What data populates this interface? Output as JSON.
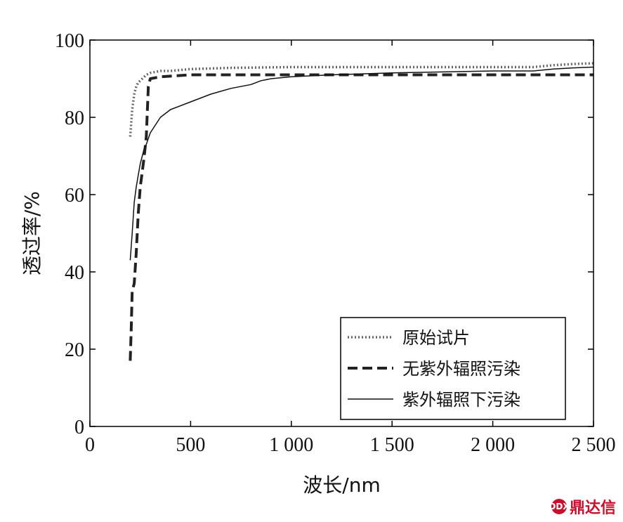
{
  "chart_data": {
    "type": "line",
    "title": "",
    "xlabel": "波长/nm",
    "ylabel": "透过率/%",
    "xlim": [
      0,
      2500
    ],
    "ylim": [
      0,
      100
    ],
    "x_ticks": [
      0,
      500,
      1000,
      1500,
      2000,
      2500
    ],
    "x_tick_labels": [
      "0",
      "500",
      "1 000",
      "1 500",
      "2 000",
      "2 500"
    ],
    "y_ticks": [
      0,
      20,
      40,
      60,
      80,
      100
    ],
    "y_tick_labels": [
      "0",
      "20",
      "40",
      "60",
      "80",
      "100"
    ],
    "grid": false,
    "legend_position": "bottom-right",
    "series": [
      {
        "name": "原始试片",
        "style": "dotted",
        "color": "#666666",
        "x": [
          200,
          210,
          220,
          230,
          240,
          250,
          260,
          280,
          300,
          350,
          400,
          500,
          700,
          1000,
          1500,
          2000,
          2200,
          2300,
          2400,
          2500
        ],
        "y": [
          75,
          82,
          86,
          88,
          89,
          89.5,
          90,
          91,
          91.5,
          92,
          92,
          92.5,
          92.8,
          93,
          93,
          93,
          93,
          93.5,
          93.8,
          94
        ]
      },
      {
        "name": "无紫外辐照污染",
        "style": "dashed",
        "color": "#222222",
        "x": [
          200,
          205,
          210,
          220,
          230,
          240,
          250,
          260,
          270,
          280,
          290,
          300,
          350,
          500,
          1000,
          1500,
          2000,
          2200,
          2500
        ],
        "y": [
          17,
          25,
          35,
          37,
          45,
          55,
          62,
          66,
          70,
          75,
          88,
          90,
          90.5,
          91,
          91,
          91,
          91,
          91,
          91
        ]
      },
      {
        "name": "紫外辐照下污染",
        "style": "solid",
        "color": "#111111",
        "x": [
          200,
          210,
          220,
          230,
          240,
          250,
          260,
          270,
          280,
          300,
          350,
          400,
          500,
          600,
          700,
          800,
          850,
          900,
          1000,
          1200,
          1500,
          2000,
          2200,
          2300,
          2400,
          2500
        ],
        "y": [
          43,
          50,
          58,
          62,
          65,
          68,
          70,
          72,
          73,
          76,
          80,
          82,
          84,
          86,
          87.5,
          88.5,
          89.5,
          90,
          90.5,
          91,
          91.5,
          92,
          92,
          92.5,
          92.8,
          93
        ]
      }
    ]
  },
  "watermark": {
    "text": "鼎达信",
    "mark": "DDX"
  }
}
